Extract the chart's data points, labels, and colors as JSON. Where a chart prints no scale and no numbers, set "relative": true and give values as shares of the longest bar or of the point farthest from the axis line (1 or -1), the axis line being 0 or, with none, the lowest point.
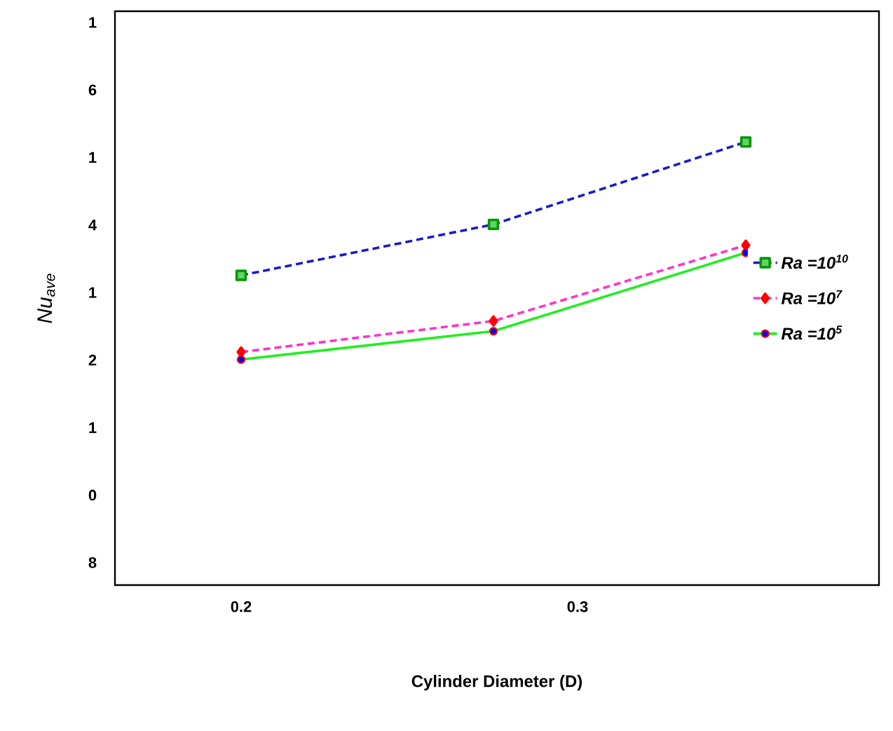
{
  "chart_data": {
    "type": "line",
    "xlabel": "Cylinder Diameter (D)",
    "ylabel": "Nu$_{ave}$",
    "xlim": [
      0.1625,
      0.3896
    ],
    "xticks": [
      0.2,
      0.3
    ],
    "relative": true,
    "annotations": [
      "1",
      "6",
      "1",
      "4",
      "1",
      "2",
      "1",
      "0",
      "8"
    ],
    "x": [
      0.2,
      0.275,
      0.35
    ],
    "legend": "right",
    "grid": false,
    "series": [
      {
        "name": "*Ra* =10$^{10}$",
        "color": "#1a1acc",
        "values": [
          0.699,
          0.814,
          1.0
        ],
        "marker": "square",
        "line_style": "dashed"
      },
      {
        "name": "*Ra* =10$^{7}$",
        "color": "#ff33cc",
        "values": [
          0.526,
          0.596,
          0.767
        ],
        "marker": "diamond",
        "line_style": "dashed"
      },
      {
        "name": "*Ra* =10$^{5}$",
        "color": "#22ee22",
        "values": [
          0.509,
          0.573,
          0.75
        ],
        "marker": "circle",
        "line_style": "solid"
      }
    ]
  }
}
